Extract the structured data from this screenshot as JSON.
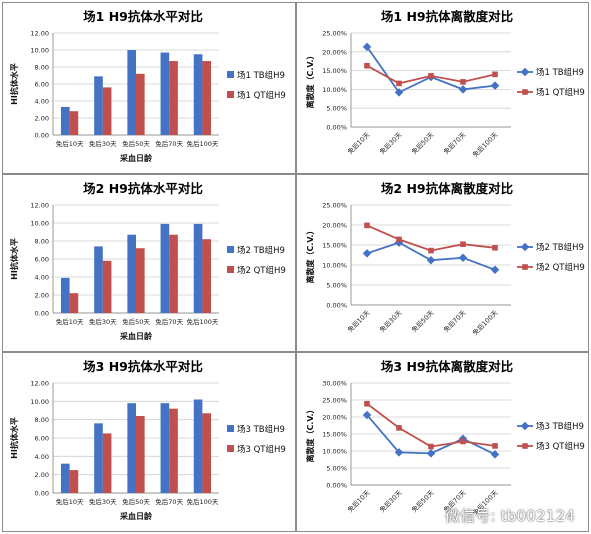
{
  "colors": {
    "tb": "#4472c4",
    "qt": "#c0504d"
  },
  "watermark": "微信号: tb002124",
  "chart_data": [
    {
      "type": "bar",
      "title": "场1 H9抗体水平对比",
      "xlabel": "采血日龄",
      "ylabel": "HI抗体水平",
      "categories": [
        "免后10天",
        "免后30天",
        "免后50天",
        "免后70天",
        "免后100天"
      ],
      "ylim": [
        0,
        12
      ],
      "yticks": [
        "0.00",
        "2.00",
        "4.00",
        "6.00",
        "8.00",
        "10.00",
        "12.00"
      ],
      "legend_position": "right",
      "series": [
        {
          "name": "场1 TB组H9",
          "values": [
            3.3,
            6.9,
            10.0,
            9.7,
            9.5
          ]
        },
        {
          "name": "场1 QT组H9",
          "values": [
            2.8,
            5.6,
            7.2,
            8.7,
            8.7
          ]
        }
      ]
    },
    {
      "type": "line",
      "title": "场1 H9抗体离散度对比",
      "ylabel": "离散度（C.V.）",
      "categories": [
        "免后10天",
        "免后30天",
        "免后50天",
        "免后70天",
        "免后100天"
      ],
      "ylim": [
        0,
        25
      ],
      "yticks": [
        "0.00%",
        "5.00%",
        "10.00%",
        "15.00%",
        "20.00%",
        "25.00%"
      ],
      "legend_position": "right",
      "series": [
        {
          "name": "场1 TB组H9",
          "values": [
            21.3,
            9.2,
            13.3,
            10.0,
            11.0
          ]
        },
        {
          "name": "场1 QT组H9",
          "values": [
            16.3,
            11.6,
            13.6,
            12.0,
            14.0
          ]
        }
      ]
    },
    {
      "type": "bar",
      "title": "场2 H9抗体水平对比",
      "xlabel": "采血日龄",
      "ylabel": "HI抗体水平",
      "categories": [
        "免后10天",
        "免后30天",
        "免后50天",
        "免后70天",
        "免后100天"
      ],
      "ylim": [
        0,
        12
      ],
      "yticks": [
        "0.00",
        "2.00",
        "4.00",
        "6.00",
        "8.00",
        "10.00",
        "12.00"
      ],
      "legend_position": "right",
      "series": [
        {
          "name": "场2 TB组H9",
          "values": [
            3.9,
            7.4,
            8.7,
            9.9,
            9.9
          ]
        },
        {
          "name": "场2 QT组H9",
          "values": [
            2.2,
            5.8,
            7.2,
            8.7,
            8.2
          ]
        }
      ]
    },
    {
      "type": "line",
      "title": "场2 H9抗体离散度对比",
      "ylabel": "离散度（C.V.）",
      "categories": [
        "免后10天",
        "免后30天",
        "免后50天",
        "免后70天",
        "免后100天"
      ],
      "ylim": [
        0,
        25
      ],
      "yticks": [
        "0.00%",
        "5.00%",
        "10.00%",
        "15.00%",
        "20.00%",
        "25.00%"
      ],
      "legend_position": "right",
      "series": [
        {
          "name": "场2 TB组H9",
          "values": [
            12.9,
            15.6,
            11.2,
            11.8,
            8.8
          ]
        },
        {
          "name": "场2 QT组H9",
          "values": [
            19.9,
            16.4,
            13.6,
            15.2,
            14.3
          ]
        }
      ]
    },
    {
      "type": "bar",
      "title": "场3 H9抗体水平对比",
      "xlabel": "采血日龄",
      "ylabel": "HI抗体水平",
      "categories": [
        "免后10天",
        "免后30天",
        "免后50天",
        "免后70天",
        "免后100天"
      ],
      "ylim": [
        0,
        12
      ],
      "yticks": [
        "0.00",
        "2.00",
        "4.00",
        "6.00",
        "8.00",
        "10.00",
        "12.00"
      ],
      "legend_position": "right",
      "series": [
        {
          "name": "场3 TB组H9",
          "values": [
            3.2,
            7.6,
            9.8,
            9.8,
            10.2
          ]
        },
        {
          "name": "场3 QT组H9",
          "values": [
            2.5,
            6.5,
            8.4,
            9.2,
            8.7
          ]
        }
      ]
    },
    {
      "type": "line",
      "title": "场3 H9抗体离散度对比",
      "ylabel": "离散度（C.V.）",
      "categories": [
        "免后10天",
        "免后30天",
        "免后50天",
        "免后70天",
        "免后100天"
      ],
      "ylim": [
        0,
        30
      ],
      "yticks": [
        "0.00%",
        "5.00%",
        "10.00%",
        "15.00%",
        "20.00%",
        "25.00%",
        "30.00%"
      ],
      "legend_position": "right",
      "series": [
        {
          "name": "场3 TB组H9",
          "values": [
            20.6,
            9.6,
            9.3,
            13.6,
            9.0
          ]
        },
        {
          "name": "场3 QT组H9",
          "values": [
            23.9,
            16.8,
            11.3,
            12.8,
            11.5
          ]
        }
      ]
    }
  ]
}
